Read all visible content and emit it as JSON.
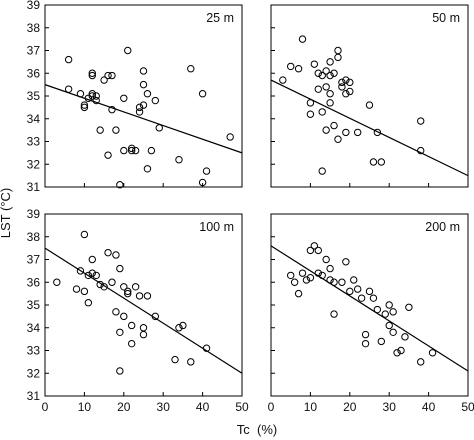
{
  "figure": {
    "ylabel": "LST (°C)",
    "xlabel": "Tc  (%)"
  },
  "chart_data": [
    {
      "type": "scatter",
      "panel_label": "25 m",
      "xlim": [
        0,
        50
      ],
      "ylim": [
        31,
        39
      ],
      "x_ticks": [],
      "y_ticks": [
        "31",
        "32",
        "33",
        "34",
        "35",
        "36",
        "37",
        "38",
        "39"
      ],
      "points": [
        {
          "x": 6,
          "y": 36.6
        },
        {
          "x": 6,
          "y": 35.3
        },
        {
          "x": 9,
          "y": 35.1
        },
        {
          "x": 10,
          "y": 34.5
        },
        {
          "x": 10,
          "y": 34.6
        },
        {
          "x": 11,
          "y": 34.9
        },
        {
          "x": 12,
          "y": 35.0
        },
        {
          "x": 12,
          "y": 35.1
        },
        {
          "x": 12,
          "y": 35.9
        },
        {
          "x": 12,
          "y": 36.0
        },
        {
          "x": 13,
          "y": 35.0
        },
        {
          "x": 13,
          "y": 34.8
        },
        {
          "x": 14,
          "y": 33.5
        },
        {
          "x": 15,
          "y": 35.7
        },
        {
          "x": 16,
          "y": 35.9
        },
        {
          "x": 16,
          "y": 32.4
        },
        {
          "x": 17,
          "y": 35.9
        },
        {
          "x": 17,
          "y": 34.4
        },
        {
          "x": 18,
          "y": 33.5
        },
        {
          "x": 19,
          "y": 31.1
        },
        {
          "x": 20,
          "y": 34.9
        },
        {
          "x": 20,
          "y": 32.6
        },
        {
          "x": 21,
          "y": 37.0
        },
        {
          "x": 22,
          "y": 32.6
        },
        {
          "x": 22,
          "y": 32.7
        },
        {
          "x": 23,
          "y": 32.6
        },
        {
          "x": 24,
          "y": 34.5
        },
        {
          "x": 24,
          "y": 34.3
        },
        {
          "x": 25,
          "y": 35.5
        },
        {
          "x": 25,
          "y": 36.1
        },
        {
          "x": 25,
          "y": 34.6
        },
        {
          "x": 26,
          "y": 31.8
        },
        {
          "x": 26,
          "y": 35.1
        },
        {
          "x": 27,
          "y": 32.6
        },
        {
          "x": 28,
          "y": 34.8
        },
        {
          "x": 29,
          "y": 33.6
        },
        {
          "x": 34,
          "y": 32.2
        },
        {
          "x": 37,
          "y": 36.2
        },
        {
          "x": 40,
          "y": 31.2
        },
        {
          "x": 40,
          "y": 35.1
        },
        {
          "x": 41,
          "y": 31.7
        },
        {
          "x": 47,
          "y": 33.2
        }
      ],
      "fit_line": {
        "x": [
          0,
          50
        ],
        "y": [
          35.5,
          32.5
        ]
      }
    },
    {
      "type": "scatter",
      "panel_label": "50 m",
      "xlim": [
        0,
        50
      ],
      "ylim": [
        31,
        39
      ],
      "x_ticks": [],
      "y_ticks": [],
      "points": [
        {
          "x": 3,
          "y": 35.7
        },
        {
          "x": 5,
          "y": 36.3
        },
        {
          "x": 7,
          "y": 36.2
        },
        {
          "x": 8,
          "y": 37.5
        },
        {
          "x": 10,
          "y": 34.7
        },
        {
          "x": 10,
          "y": 34.2
        },
        {
          "x": 11,
          "y": 36.4
        },
        {
          "x": 12,
          "y": 36.0
        },
        {
          "x": 12,
          "y": 35.3
        },
        {
          "x": 13,
          "y": 35.9
        },
        {
          "x": 13,
          "y": 34.3
        },
        {
          "x": 13,
          "y": 31.7
        },
        {
          "x": 14,
          "y": 36.1
        },
        {
          "x": 14,
          "y": 35.4
        },
        {
          "x": 14,
          "y": 33.5
        },
        {
          "x": 15,
          "y": 35.9
        },
        {
          "x": 15,
          "y": 35.1
        },
        {
          "x": 15,
          "y": 34.7
        },
        {
          "x": 15,
          "y": 36.5
        },
        {
          "x": 16,
          "y": 33.7
        },
        {
          "x": 16,
          "y": 36.0
        },
        {
          "x": 17,
          "y": 37.0
        },
        {
          "x": 17,
          "y": 36.7
        },
        {
          "x": 17,
          "y": 33.1
        },
        {
          "x": 18,
          "y": 35.6
        },
        {
          "x": 18,
          "y": 35.4
        },
        {
          "x": 19,
          "y": 35.7
        },
        {
          "x": 19,
          "y": 35.1
        },
        {
          "x": 19,
          "y": 33.4
        },
        {
          "x": 20,
          "y": 35.2
        },
        {
          "x": 20,
          "y": 35.6
        },
        {
          "x": 22,
          "y": 33.4
        },
        {
          "x": 25,
          "y": 34.6
        },
        {
          "x": 26,
          "y": 32.1
        },
        {
          "x": 27,
          "y": 33.4
        },
        {
          "x": 28,
          "y": 32.1
        },
        {
          "x": 38,
          "y": 33.9
        },
        {
          "x": 38,
          "y": 32.6
        }
      ],
      "fit_line": {
        "x": [
          0,
          50
        ],
        "y": [
          35.7,
          31.5
        ]
      }
    },
    {
      "type": "scatter",
      "panel_label": "100 m",
      "xlim": [
        0,
        50
      ],
      "ylim": [
        31,
        39
      ],
      "x_ticks": [
        "0",
        "10",
        "20",
        "30",
        "40",
        "50"
      ],
      "y_ticks": [
        "31",
        "32",
        "33",
        "34",
        "35",
        "36",
        "37",
        "38",
        "39"
      ],
      "points": [
        {
          "x": 3,
          "y": 36.0
        },
        {
          "x": 8,
          "y": 35.7
        },
        {
          "x": 9,
          "y": 36.5
        },
        {
          "x": 10,
          "y": 38.1
        },
        {
          "x": 10,
          "y": 35.6
        },
        {
          "x": 11,
          "y": 36.3
        },
        {
          "x": 11,
          "y": 35.1
        },
        {
          "x": 12,
          "y": 37.0
        },
        {
          "x": 12,
          "y": 36.4
        },
        {
          "x": 13,
          "y": 36.3
        },
        {
          "x": 14,
          "y": 35.9
        },
        {
          "x": 15,
          "y": 35.8
        },
        {
          "x": 16,
          "y": 37.3
        },
        {
          "x": 17,
          "y": 36.0
        },
        {
          "x": 18,
          "y": 37.2
        },
        {
          "x": 18,
          "y": 34.7
        },
        {
          "x": 19,
          "y": 36.6
        },
        {
          "x": 19,
          "y": 33.8
        },
        {
          "x": 19,
          "y": 32.1
        },
        {
          "x": 20,
          "y": 35.8
        },
        {
          "x": 20,
          "y": 34.5
        },
        {
          "x": 21,
          "y": 35.6
        },
        {
          "x": 21,
          "y": 35.5
        },
        {
          "x": 22,
          "y": 34.1
        },
        {
          "x": 22,
          "y": 33.3
        },
        {
          "x": 23,
          "y": 35.8
        },
        {
          "x": 24,
          "y": 35.4
        },
        {
          "x": 25,
          "y": 34.0
        },
        {
          "x": 25,
          "y": 33.7
        },
        {
          "x": 26,
          "y": 35.4
        },
        {
          "x": 28,
          "y": 34.5
        },
        {
          "x": 33,
          "y": 32.6
        },
        {
          "x": 34,
          "y": 34.0
        },
        {
          "x": 35,
          "y": 34.1
        },
        {
          "x": 37,
          "y": 32.5
        },
        {
          "x": 41,
          "y": 33.1
        }
      ],
      "fit_line": {
        "x": [
          0,
          50
        ],
        "y": [
          37.5,
          32.0
        ]
      }
    },
    {
      "type": "scatter",
      "panel_label": "200 m",
      "xlim": [
        0,
        50
      ],
      "ylim": [
        31,
        39
      ],
      "x_ticks": [
        "0",
        "10",
        "20",
        "30",
        "40",
        "50"
      ],
      "y_ticks": [],
      "points": [
        {
          "x": 5,
          "y": 36.3
        },
        {
          "x": 6,
          "y": 36.0
        },
        {
          "x": 7,
          "y": 35.5
        },
        {
          "x": 8,
          "y": 36.4
        },
        {
          "x": 9,
          "y": 36.1
        },
        {
          "x": 10,
          "y": 37.4
        },
        {
          "x": 10,
          "y": 36.2
        },
        {
          "x": 11,
          "y": 37.6
        },
        {
          "x": 12,
          "y": 37.4
        },
        {
          "x": 12,
          "y": 36.4
        },
        {
          "x": 13,
          "y": 36.3
        },
        {
          "x": 14,
          "y": 37.0
        },
        {
          "x": 15,
          "y": 36.6
        },
        {
          "x": 15,
          "y": 36.1
        },
        {
          "x": 16,
          "y": 36.0
        },
        {
          "x": 16,
          "y": 34.6
        },
        {
          "x": 18,
          "y": 36.0
        },
        {
          "x": 19,
          "y": 36.9
        },
        {
          "x": 20,
          "y": 35.6
        },
        {
          "x": 21,
          "y": 36.1
        },
        {
          "x": 22,
          "y": 35.7
        },
        {
          "x": 23,
          "y": 35.3
        },
        {
          "x": 24,
          "y": 33.7
        },
        {
          "x": 24,
          "y": 33.3
        },
        {
          "x": 25,
          "y": 35.6
        },
        {
          "x": 26,
          "y": 35.3
        },
        {
          "x": 27,
          "y": 34.8
        },
        {
          "x": 28,
          "y": 33.4
        },
        {
          "x": 29,
          "y": 34.6
        },
        {
          "x": 30,
          "y": 34.1
        },
        {
          "x": 30,
          "y": 35.0
        },
        {
          "x": 31,
          "y": 34.7
        },
        {
          "x": 31,
          "y": 33.8
        },
        {
          "x": 32,
          "y": 32.9
        },
        {
          "x": 33,
          "y": 33.0
        },
        {
          "x": 34,
          "y": 33.6
        },
        {
          "x": 35,
          "y": 34.9
        },
        {
          "x": 38,
          "y": 32.5
        },
        {
          "x": 41,
          "y": 32.9
        }
      ],
      "fit_line": {
        "x": [
          0,
          50
        ],
        "y": [
          37.6,
          32.1
        ]
      }
    }
  ]
}
